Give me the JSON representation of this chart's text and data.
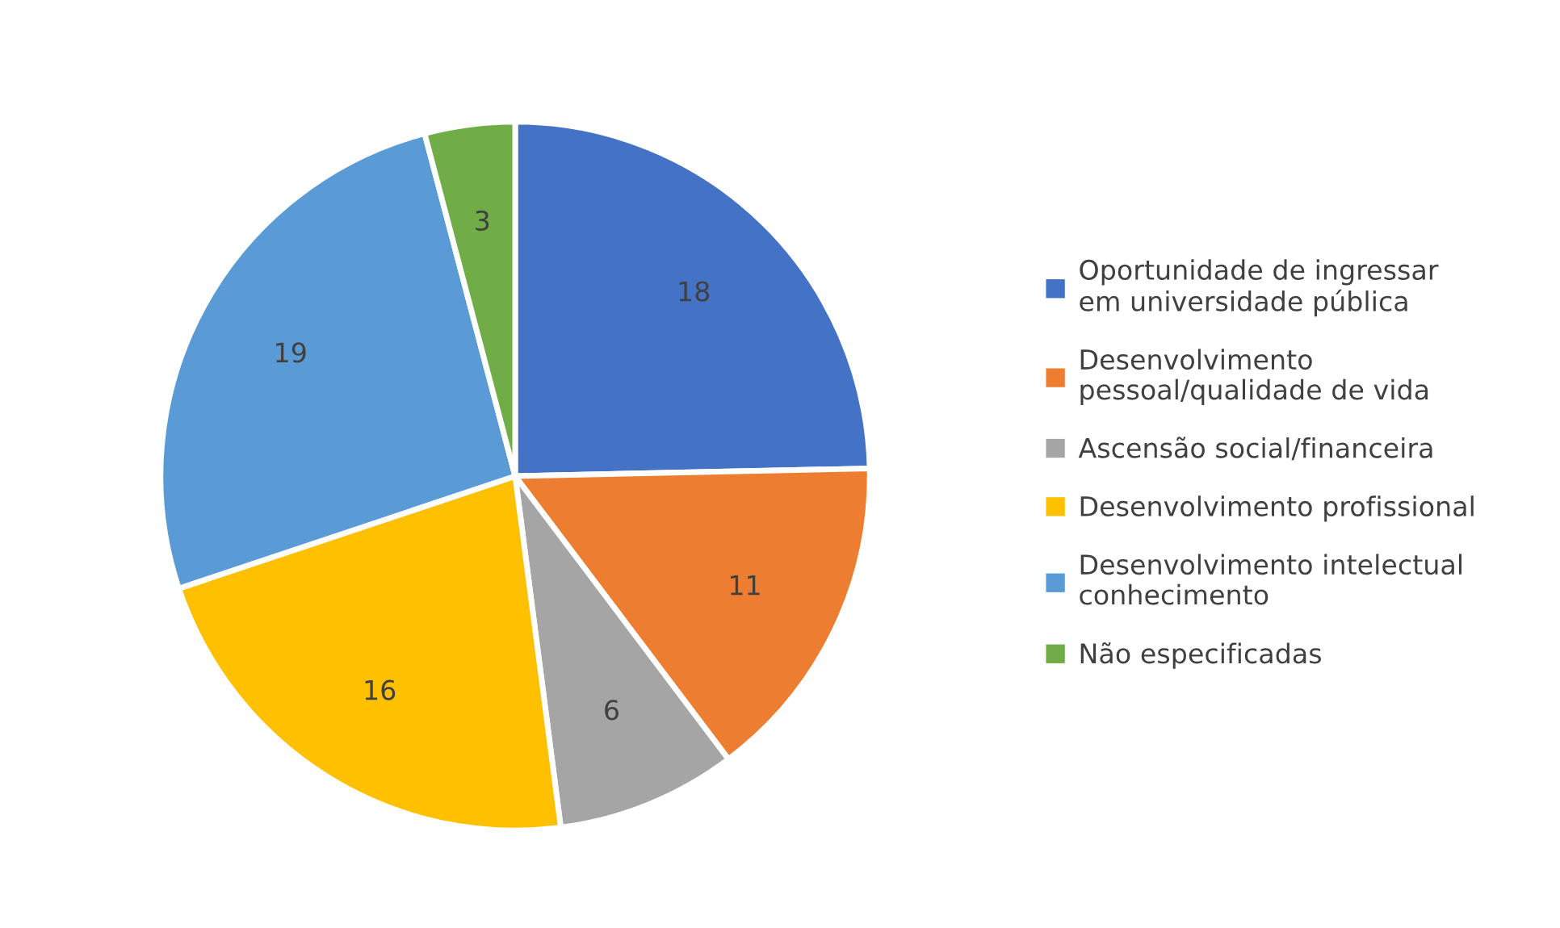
{
  "chart_data": {
    "type": "pie",
    "categories": [
      "Oportunidade de ingressar\nem universidade pública",
      "Desenvolvimento\npessoal/qualidade de vida",
      "Ascensão social/financeira",
      "Desenvolvimento profissional",
      "Desenvolvimento intelectual\nconhecimento",
      "Não especificadas"
    ],
    "values": [
      18,
      11,
      6,
      16,
      19,
      3
    ],
    "colors": [
      "#4472c4",
      "#ed7d31",
      "#a5a5a5",
      "#ffc000",
      "#5b9bd5",
      "#70ad47"
    ],
    "data_labels": true,
    "legend": "right"
  }
}
